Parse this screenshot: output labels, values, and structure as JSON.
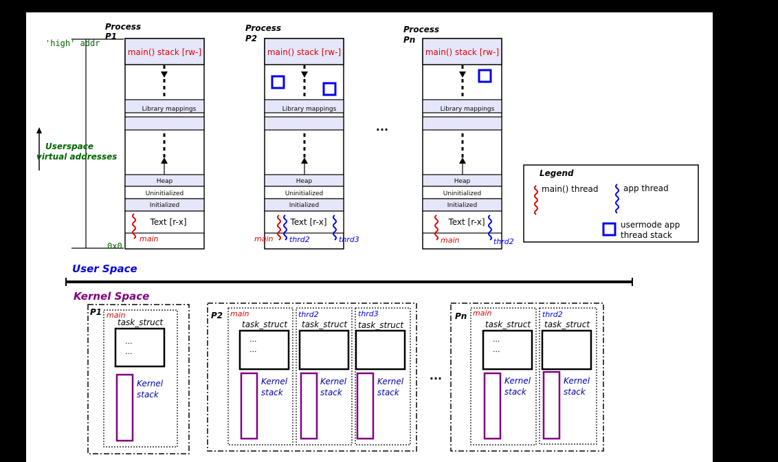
{
  "colors": {
    "background": "#000000",
    "canvas": "#ffffff",
    "segment_fill": "#e6e6fa",
    "main_thread": "#e00000",
    "app_thread": "#0000ee",
    "kernel_stack": "#800080",
    "green_text": "#006400",
    "user_space_text": "#0000dd",
    "kernel_space_text": "#800080"
  },
  "userspace": {
    "high_addr": "'high' addr",
    "zero_addr": "0x0",
    "axis_label_line1": "Userspace",
    "axis_label_line2": "virtual addresses",
    "section_label": "User Space",
    "ellipsis": "...",
    "segments": {
      "stack": "main() stack [rw-]",
      "library": "Library mappings",
      "heap": "Heap",
      "uninit": "Uninitialized",
      "init": "Initialized",
      "text": "Text [r-x]"
    },
    "processes": [
      {
        "title_line1": "Process",
        "title_line2": "P1",
        "main_label": "main",
        "app_labels": []
      },
      {
        "title_line1": "Process",
        "title_line2": "P2",
        "main_label": "main",
        "app_labels": [
          "thrd2",
          "thrd3"
        ]
      },
      {
        "title_line1": "Process",
        "title_line2": "Pn",
        "main_label": "main",
        "app_labels": [
          "thrd2"
        ]
      }
    ]
  },
  "legend": {
    "title": "Legend",
    "main_thread": "main() thread",
    "app_thread": "app thread",
    "stack_line1": "usermode app",
    "stack_line2": "thread stack"
  },
  "kernel": {
    "section_label": "Kernel Space",
    "ellipsis": "...",
    "task_struct": "task_struct",
    "dots": "...",
    "kernel_stack_line1": "Kernel",
    "kernel_stack_line2": "stack",
    "groups": [
      {
        "label": "P1",
        "threads": [
          "main"
        ]
      },
      {
        "label": "P2",
        "threads": [
          "main",
          "thrd2",
          "thrd3"
        ]
      },
      {
        "label": "Pn",
        "threads": [
          "main",
          "thrd2"
        ]
      }
    ]
  }
}
